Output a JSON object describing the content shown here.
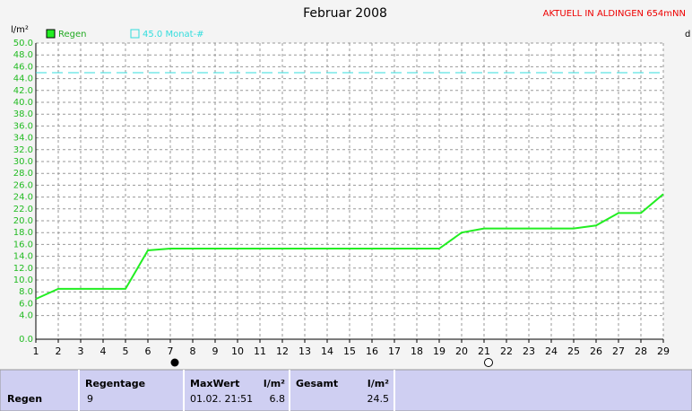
{
  "chart_data": {
    "type": "line",
    "title": "Februar 2008",
    "subtitle": "AKTUELL IN ALDINGEN 654mNN",
    "y_label": "l/m²",
    "right_label": "d",
    "x": [
      1,
      2,
      3,
      4,
      5,
      6,
      7,
      8,
      9,
      10,
      11,
      12,
      13,
      14,
      15,
      16,
      17,
      18,
      19,
      20,
      21,
      22,
      23,
      24,
      25,
      26,
      27,
      28,
      29
    ],
    "series": [
      {
        "name": "Regen",
        "color": "#22ee22",
        "values": [
          6.8,
          8.5,
          8.5,
          8.5,
          8.5,
          15.0,
          15.3,
          15.3,
          15.3,
          15.3,
          15.3,
          15.3,
          15.3,
          15.3,
          15.3,
          15.3,
          15.3,
          15.3,
          15.3,
          18.0,
          18.7,
          18.7,
          18.7,
          18.7,
          18.7,
          19.2,
          21.3,
          21.3,
          24.5
        ]
      }
    ],
    "reference": {
      "value": 45,
      "label": "45.0 Monat-#",
      "color": "#33dddd"
    },
    "xlim": [
      1,
      29
    ],
    "xticks": [
      1,
      2,
      3,
      4,
      5,
      6,
      7,
      8,
      9,
      10,
      11,
      12,
      13,
      14,
      15,
      16,
      17,
      18,
      19,
      20,
      21,
      22,
      23,
      24,
      25,
      26,
      27,
      28,
      29
    ],
    "ylim": [
      0,
      50
    ],
    "yticks": [
      {
        "value": 0,
        "label": "0.0"
      },
      {
        "value": 4,
        "label": "4.0"
      },
      {
        "value": 6,
        "label": "6.0"
      },
      {
        "value": 8,
        "label": "8.0"
      },
      {
        "value": 10,
        "label": "10.0"
      },
      {
        "value": 12,
        "label": "12.0"
      },
      {
        "value": 14,
        "label": "14.0"
      },
      {
        "value": 16,
        "label": "16.0"
      },
      {
        "value": 18,
        "label": "18.0"
      },
      {
        "value": 20,
        "label": "20.0"
      },
      {
        "value": 22,
        "label": "22.0"
      },
      {
        "value": 24,
        "label": "24.0"
      },
      {
        "value": 26,
        "label": "26.0"
      },
      {
        "value": 28,
        "label": "28.0"
      },
      {
        "value": 30,
        "label": "30.0"
      },
      {
        "value": 32,
        "label": "32.0"
      },
      {
        "value": 34,
        "label": "34.0"
      },
      {
        "value": 36,
        "label": "36.0"
      },
      {
        "value": 38,
        "label": "38.0"
      },
      {
        "value": 40,
        "label": "40.0"
      },
      {
        "value": 42,
        "label": "42.0"
      },
      {
        "value": 44,
        "label": "44.0"
      },
      {
        "value": 46,
        "label": "46.0"
      },
      {
        "value": 48,
        "label": "48.0"
      },
      {
        "value": 50,
        "label": "50.0"
      }
    ],
    "grid": true
  },
  "table": {
    "row_label": "Regen",
    "columns": [
      {
        "header": "Regentage",
        "value": "9"
      },
      {
        "header": "MaxWert",
        "unit": "l/m²",
        "date": "01.02. 21:51",
        "value": "6.8"
      },
      {
        "header": "Gesamt",
        "unit": "l/m²",
        "value": "24.5"
      }
    ]
  }
}
